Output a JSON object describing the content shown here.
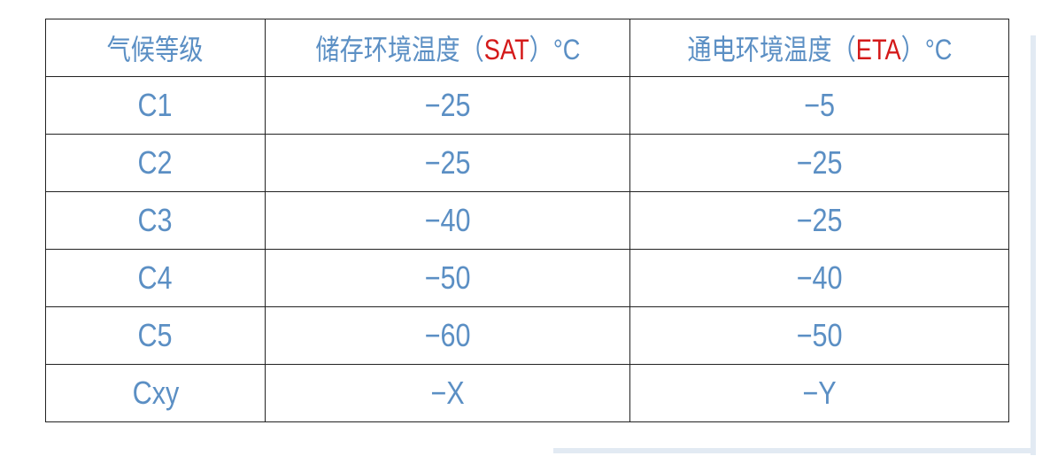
{
  "table": {
    "headers": [
      {
        "pre": "气候等级",
        "code": "",
        "post": ""
      },
      {
        "pre": "储存环境温度（",
        "code": "SAT",
        "post": "）°C"
      },
      {
        "pre": "通电环境温度（",
        "code": "ETA",
        "post": "）°C"
      }
    ],
    "rows": [
      [
        "C1",
        "−25",
        "−5"
      ],
      [
        "C2",
        "−25",
        "−25"
      ],
      [
        "C3",
        "−40",
        "−25"
      ],
      [
        "C4",
        "−50",
        "−40"
      ],
      [
        "C5",
        "−60",
        "−50"
      ],
      [
        "Cxy",
        "−X",
        "−Y"
      ]
    ]
  },
  "colors": {
    "text": "#5b8fc4",
    "highlight": "#d41a1a",
    "border": "#222222"
  }
}
